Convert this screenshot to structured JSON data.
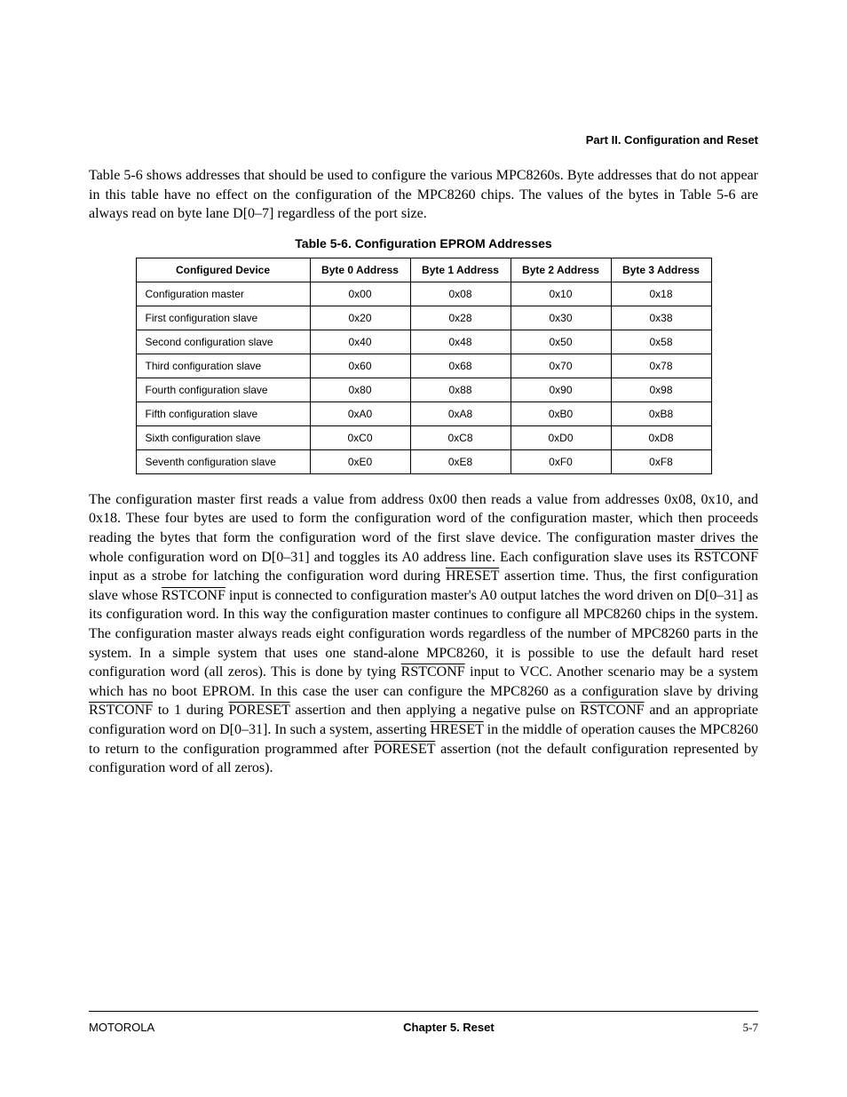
{
  "header": {
    "part": "Part II. Configuration and Reset"
  },
  "para1": "Table 5-6 shows addresses that should be used to configure the various MPC8260s. Byte addresses that do not appear in this table have no effect on the configuration of the MPC8260 chips. The values of the bytes in Table 5-6 are always read on byte lane D[0–7] regardless of the port size.",
  "table": {
    "caption": "Table 5-6. Configuration EPROM Addresses",
    "columns": [
      "Configured Device",
      "Byte 0 Address",
      "Byte 1 Address",
      "Byte 2 Address",
      "Byte 3 Address"
    ],
    "rows": [
      [
        "Configuration master",
        "0x00",
        "0x08",
        "0x10",
        "0x18"
      ],
      [
        "First configuration slave",
        "0x20",
        "0x28",
        "0x30",
        "0x38"
      ],
      [
        "Second configuration slave",
        "0x40",
        "0x48",
        "0x50",
        "0x58"
      ],
      [
        "Third configuration slave",
        "0x60",
        "0x68",
        "0x70",
        "0x78"
      ],
      [
        "Fourth configuration slave",
        "0x80",
        "0x88",
        "0x90",
        "0x98"
      ],
      [
        "Fifth configuration slave",
        "0xA0",
        "0xA8",
        "0xB0",
        "0xB8"
      ],
      [
        "Sixth configuration slave",
        "0xC0",
        "0xC8",
        "0xD0",
        "0xD8"
      ],
      [
        "Seventh configuration slave",
        "0xE0",
        "0xE8",
        "0xF0",
        "0xF8"
      ]
    ]
  },
  "para2": {
    "segments": [
      {
        "t": "The configuration master first reads a value from address 0x00 then reads a value from addresses 0x08, 0x10, and 0x18. These four bytes are used to form the configuration word of the configuration master, which then proceeds reading the bytes that form the configuration word of the first slave device. The configuration master drives the whole configuration word on D[0–31] and toggles its A0 address line. Each configuration slave uses its "
      },
      {
        "t": "RSTCONF",
        "o": true
      },
      {
        "t": " input as a strobe for latching the configuration word during "
      },
      {
        "t": "HRESET",
        "o": true
      },
      {
        "t": " assertion time. Thus, the first configuration slave whose "
      },
      {
        "t": "RSTCONF",
        "o": true
      },
      {
        "t": " input is connected to configuration master's A0 output latches the word driven on D[0–31] as its configuration word. In this way the configuration master continues to configure all MPC8260 chips in the system. The configuration master always reads eight configuration words regardless of the number of MPC8260 parts in the system. In a simple system that uses one stand-alone MPC8260, it is possible to use the default hard reset configuration word (all zeros). This is done by tying "
      },
      {
        "t": "RSTCONF",
        "o": true
      },
      {
        "t": " input to VCC. Another scenario may be a system which has no boot EPROM. In this case the user can configure the MPC8260 as a configuration slave by driving "
      },
      {
        "t": "RSTCONF",
        "o": true
      },
      {
        "t": " to 1 during "
      },
      {
        "t": "PORESET",
        "o": true
      },
      {
        "t": " assertion and then applying a negative pulse on "
      },
      {
        "t": "RSTCONF",
        "o": true
      },
      {
        "t": " and an appropriate configuration word on D[0–31]. In such a system, asserting "
      },
      {
        "t": "HRESET",
        "o": true
      },
      {
        "t": " in the middle of operation causes the MPC8260 to return to the configuration programmed after "
      },
      {
        "t": "PORESET",
        "o": true
      },
      {
        "t": " assertion (not the default configuration represented by configuration word of all zeros)."
      }
    ]
  },
  "footer": {
    "left": "MOTOROLA",
    "center": "Chapter 5. Reset",
    "right": "5-7"
  }
}
